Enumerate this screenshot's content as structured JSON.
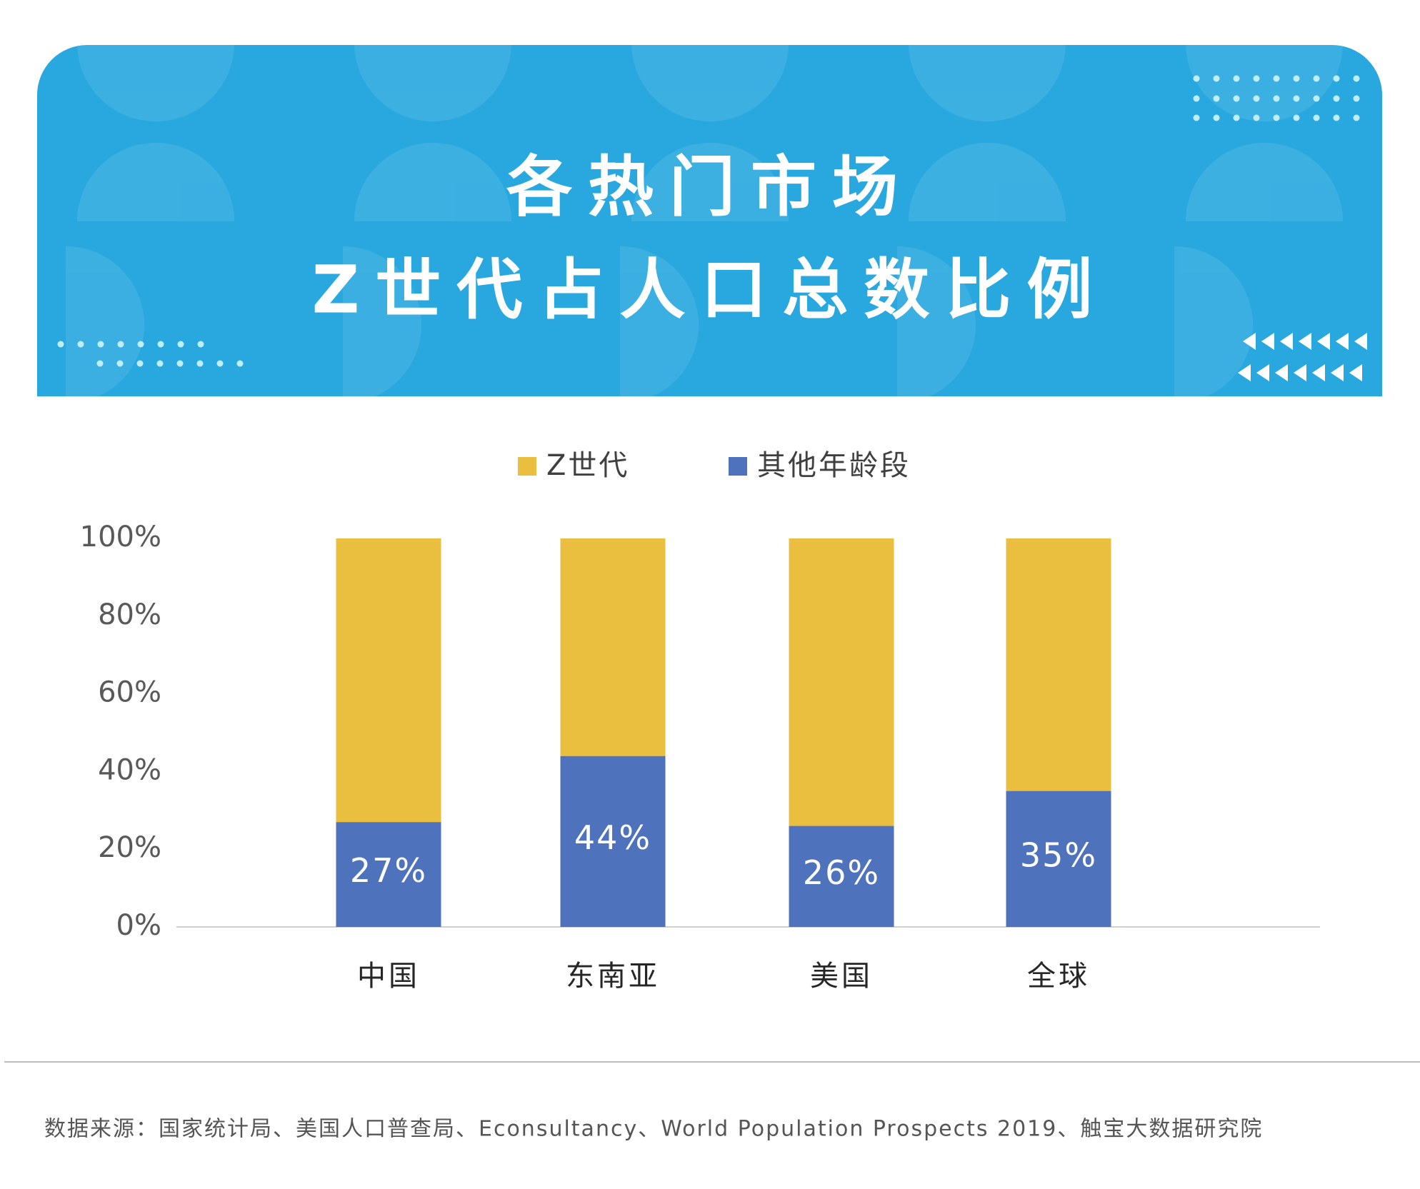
{
  "chart_data": {
    "type": "stacked_bar",
    "title": [
      "各热门市场",
      "Z世代占人口总数比例"
    ],
    "categories": [
      "中国",
      "东南亚",
      "美国",
      "全球"
    ],
    "series": [
      {
        "name": "其他年龄段",
        "color": "#4f72bd",
        "values": [
          27,
          44,
          26,
          35
        ],
        "value_labels": [
          "27%",
          "44%",
          "26%",
          "35%"
        ]
      },
      {
        "name": "Z世代",
        "color": "#eabf40",
        "values": [
          73,
          56,
          74,
          65
        ]
      }
    ],
    "legend_order": [
      "Z世代",
      "其他年龄段"
    ],
    "ylim": [
      0,
      100
    ],
    "yticks": [
      {
        "value": 0,
        "label": "0%"
      },
      {
        "value": 20,
        "label": "20%"
      },
      {
        "value": 40,
        "label": "40%"
      },
      {
        "value": 60,
        "label": "60%"
      },
      {
        "value": 80,
        "label": "80%"
      },
      {
        "value": 100,
        "label": "100%"
      }
    ],
    "legend_position": "top",
    "source": "数据来源：国家统计局、美国人口普查局、Econsultancy、World Population Prospects 2019、触宝大数据研究院"
  }
}
